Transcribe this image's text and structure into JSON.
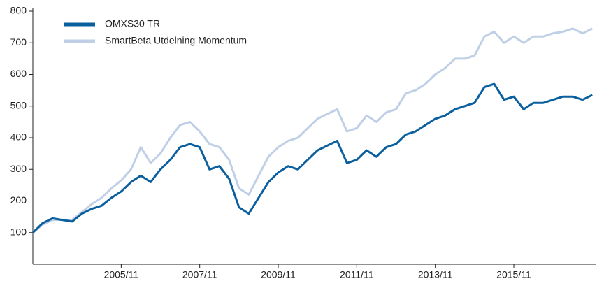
{
  "chart_data": {
    "type": "line",
    "x": [
      "2003/08",
      "2003/11",
      "2004/02",
      "2004/05",
      "2004/08",
      "2004/11",
      "2005/02",
      "2005/05",
      "2005/08",
      "2005/11",
      "2006/02",
      "2006/05",
      "2006/08",
      "2006/11",
      "2007/02",
      "2007/05",
      "2007/08",
      "2007/11",
      "2008/02",
      "2008/05",
      "2008/08",
      "2008/11",
      "2009/02",
      "2009/05",
      "2009/08",
      "2009/11",
      "2010/02",
      "2010/05",
      "2010/08",
      "2010/11",
      "2011/02",
      "2011/05",
      "2011/08",
      "2011/11",
      "2012/02",
      "2012/05",
      "2012/08",
      "2012/11",
      "2013/02",
      "2013/05",
      "2013/08",
      "2013/11",
      "2014/02",
      "2014/05",
      "2014/08",
      "2014/11",
      "2015/02",
      "2015/05",
      "2015/08",
      "2015/11",
      "2016/02",
      "2016/05",
      "2016/08",
      "2016/11",
      "2017/02",
      "2017/05",
      "2017/08",
      "2017/11"
    ],
    "series": [
      {
        "name": "OMXS30 TR",
        "color": "#0a5f9e",
        "values": [
          100,
          130,
          145,
          140,
          135,
          160,
          175,
          185,
          210,
          230,
          260,
          280,
          260,
          300,
          330,
          370,
          380,
          370,
          300,
          310,
          270,
          180,
          160,
          210,
          260,
          290,
          310,
          300,
          330,
          360,
          375,
          390,
          320,
          330,
          360,
          340,
          370,
          380,
          410,
          420,
          440,
          460,
          470,
          490,
          500,
          510,
          560,
          570,
          520,
          530,
          490,
          510,
          510,
          520,
          530,
          530,
          520,
          535
        ]
      },
      {
        "name": "SmartBeta Utdelning Momentum",
        "color": "#bfd0e6",
        "values": [
          100,
          125,
          140,
          140,
          140,
          165,
          190,
          210,
          240,
          265,
          300,
          370,
          320,
          350,
          400,
          440,
          450,
          420,
          380,
          370,
          330,
          240,
          220,
          280,
          340,
          370,
          390,
          400,
          430,
          460,
          475,
          490,
          420,
          430,
          470,
          450,
          480,
          490,
          540,
          550,
          570,
          600,
          620,
          650,
          650,
          660,
          720,
          735,
          700,
          720,
          700,
          720,
          720,
          730,
          735,
          745,
          730,
          745
        ]
      }
    ],
    "xlim": [
      "2003/08",
      "2017/12"
    ],
    "xticks": [
      "2005/11",
      "2007/11",
      "2009/11",
      "2011/11",
      "2013/11",
      "2015/11"
    ],
    "ylim": [
      0,
      800
    ],
    "yticks": [
      100,
      200,
      300,
      400,
      500,
      600,
      700,
      800
    ],
    "legend": "top-left"
  }
}
